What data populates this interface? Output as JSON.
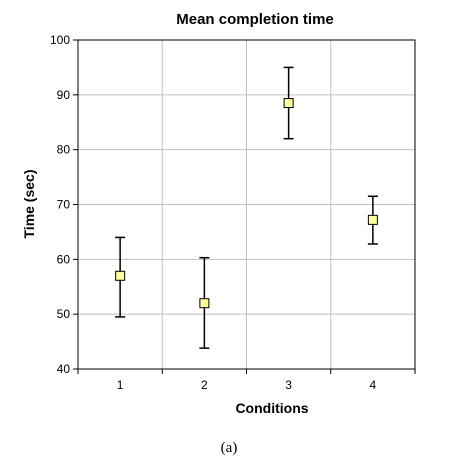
{
  "chart_data": {
    "type": "scatter",
    "title": "Mean completion time",
    "xlabel": "Conditions",
    "ylabel": "Time (sec)",
    "categories": [
      "1",
      "2",
      "3",
      "4"
    ],
    "ylim": [
      40,
      100
    ],
    "yticks": [
      "40",
      "50",
      "60",
      "70",
      "80",
      "90",
      "100"
    ],
    "grid": true,
    "series": [
      {
        "points": [
          {
            "x": "1",
            "y": 57.0,
            "error_low": 49.5,
            "error_high": 64.0
          },
          {
            "x": "2",
            "y": 52.0,
            "error_low": 43.8,
            "error_high": 60.3
          },
          {
            "x": "3",
            "y": 88.5,
            "error_low": 82.0,
            "error_high": 95.0
          },
          {
            "x": "4",
            "y": 67.2,
            "error_low": 62.8,
            "error_high": 71.5
          }
        ]
      }
    ],
    "colors": {
      "marker_fill": "#ffff99",
      "marker_stroke": "#000000",
      "grid": "#c0c0c0",
      "error_bar": "#000000"
    }
  },
  "caption": "(a)"
}
